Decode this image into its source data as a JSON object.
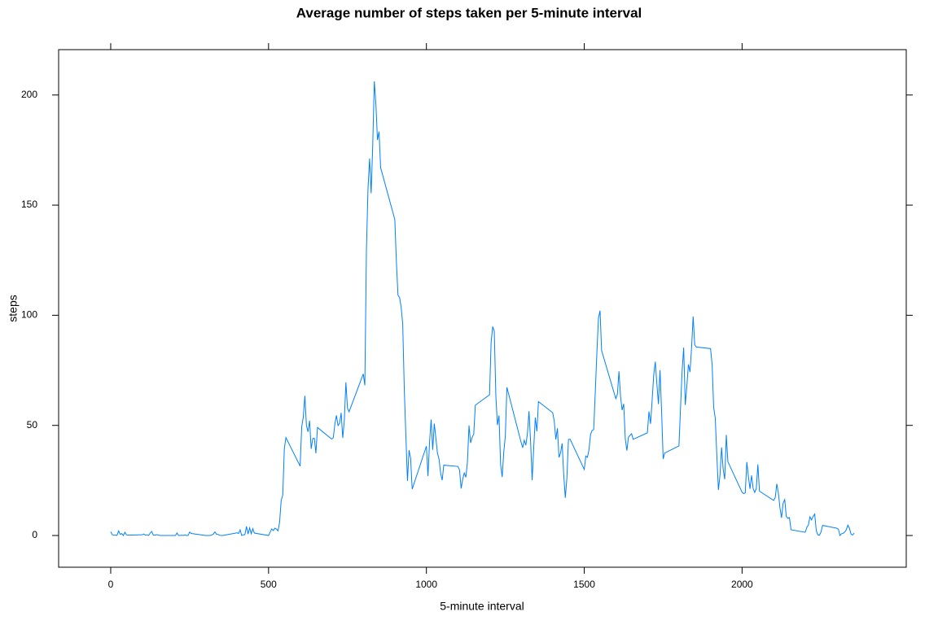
{
  "chart_data": {
    "type": "line",
    "title": "Average number of steps taken per 5-minute interval",
    "xlabel": "5-minute interval",
    "ylabel": "steps",
    "xlim": [
      -165,
      2520
    ],
    "ylim": [
      -14.4,
      220.6
    ],
    "xticks": [
      0,
      500,
      1000,
      1500,
      2000
    ],
    "yticks": [
      0,
      50,
      100,
      150,
      200
    ],
    "x": [
      0,
      5,
      10,
      15,
      20,
      25,
      30,
      35,
      40,
      45,
      50,
      55,
      100,
      105,
      110,
      115,
      120,
      125,
      130,
      135,
      140,
      145,
      150,
      155,
      200,
      205,
      210,
      215,
      220,
      225,
      230,
      235,
      240,
      245,
      250,
      255,
      300,
      305,
      310,
      315,
      320,
      325,
      330,
      335,
      340,
      345,
      350,
      355,
      400,
      405,
      410,
      415,
      420,
      425,
      430,
      435,
      440,
      445,
      450,
      455,
      500,
      505,
      510,
      515,
      520,
      525,
      530,
      535,
      540,
      545,
      550,
      555,
      600,
      605,
      610,
      615,
      620,
      625,
      630,
      635,
      640,
      645,
      650,
      655,
      700,
      705,
      710,
      715,
      720,
      725,
      730,
      735,
      740,
      745,
      750,
      755,
      800,
      805,
      810,
      815,
      820,
      825,
      830,
      835,
      840,
      845,
      850,
      855,
      900,
      905,
      910,
      915,
      920,
      925,
      930,
      935,
      940,
      945,
      950,
      955,
      1000,
      1005,
      1010,
      1015,
      1020,
      1025,
      1030,
      1035,
      1040,
      1045,
      1050,
      1055,
      1100,
      1105,
      1110,
      1115,
      1120,
      1125,
      1130,
      1135,
      1140,
      1145,
      1150,
      1155,
      1200,
      1205,
      1210,
      1215,
      1220,
      1225,
      1230,
      1235,
      1240,
      1245,
      1250,
      1255,
      1300,
      1305,
      1310,
      1315,
      1320,
      1325,
      1330,
      1335,
      1340,
      1345,
      1350,
      1355,
      1400,
      1405,
      1410,
      1415,
      1420,
      1425,
      1430,
      1435,
      1440,
      1445,
      1450,
      1455,
      1500,
      1505,
      1510,
      1515,
      1520,
      1525,
      1530,
      1535,
      1540,
      1545,
      1550,
      1555,
      1600,
      1605,
      1610,
      1615,
      1620,
      1625,
      1630,
      1635,
      1640,
      1645,
      1650,
      1655,
      1700,
      1705,
      1710,
      1715,
      1720,
      1725,
      1730,
      1735,
      1740,
      1745,
      1750,
      1755,
      1800,
      1805,
      1810,
      1815,
      1820,
      1825,
      1830,
      1835,
      1840,
      1845,
      1850,
      1855,
      1900,
      1905,
      1910,
      1915,
      1920,
      1925,
      1930,
      1935,
      1940,
      1945,
      1950,
      1955,
      2000,
      2005,
      2010,
      2015,
      2020,
      2025,
      2030,
      2035,
      2040,
      2045,
      2050,
      2055,
      2100,
      2105,
      2110,
      2115,
      2120,
      2125,
      2130,
      2135,
      2140,
      2145,
      2150,
      2155,
      2200,
      2205,
      2210,
      2215,
      2220,
      2225,
      2230,
      2235,
      2240,
      2245,
      2250,
      2255,
      2300,
      2305,
      2310,
      2315,
      2320,
      2325,
      2330,
      2335,
      2340,
      2345,
      2350,
      2355
    ],
    "series": [
      {
        "color": "#0080ff",
        "values": [
          1.72,
          0.34,
          0.13,
          0.15,
          0.08,
          2.09,
          0.53,
          0.87,
          0,
          1.47,
          0.3,
          0.13,
          0.32,
          0.68,
          0.15,
          0.34,
          0,
          1.11,
          1.83,
          0.17,
          0.17,
          0.38,
          0.26,
          0,
          0,
          0,
          1.13,
          0,
          0,
          0.13,
          0,
          0.23,
          0,
          0,
          1.55,
          0.94,
          0,
          0,
          0,
          0,
          0.21,
          0.62,
          1.62,
          0.58,
          0.49,
          0.08,
          0,
          0,
          1.19,
          0.94,
          2.57,
          0,
          0.34,
          0.36,
          4.11,
          0.66,
          3.49,
          0.83,
          3.11,
          1.11,
          0,
          1.55,
          2.98,
          2.25,
          3.32,
          2.96,
          2.09,
          6.06,
          16.02,
          18.34,
          39.45,
          44.49,
          31.49,
          49.26,
          53.77,
          63.45,
          49.96,
          47.08,
          52.15,
          39.34,
          44.02,
          44.17,
          37.36,
          49.04,
          43.81,
          44.38,
          50.51,
          54.51,
          49.92,
          50.98,
          55.68,
          44.32,
          52.26,
          69.55,
          57.85,
          56.15,
          73.38,
          68.21,
          129.43,
          157.53,
          171.15,
          155.4,
          177.3,
          206.17,
          195.92,
          179.57,
          183.4,
          167.02,
          143.45,
          124.04,
          109.11,
          108.11,
          103.72,
          95.97,
          66.21,
          45.23,
          24.79,
          38.75,
          34.98,
          21.06,
          40.57,
          26.98,
          42.42,
          52.66,
          38.92,
          50.79,
          44.28,
          37.42,
          34.7,
          28.34,
          25.09,
          31.94,
          31.36,
          29.68,
          21.32,
          25.55,
          28.38,
          26.47,
          33.43,
          49.98,
          42.04,
          44.6,
          46.04,
          59.19,
          63.87,
          87.7,
          94.85,
          92.77,
          63.4,
          50.17,
          54.47,
          32.42,
          26.53,
          37.74,
          45.06,
          67.28,
          42.34,
          39.88,
          43.26,
          40.98,
          46.25,
          56.43,
          42.75,
          25.13,
          39.96,
          53.55,
          47.32,
          60.81,
          55.75,
          51.96,
          43.58,
          48.7,
          35.47,
          37.55,
          41.85,
          27.51,
          17.11,
          26.08,
          43.62,
          43.77,
          30.02,
          36.08,
          35.49,
          38.85,
          45.96,
          47.75,
          48.13,
          65.32,
          82.91,
          98.66,
          102.11,
          83.96,
          62.13,
          64.13,
          74.55,
          63.17,
          56.91,
          59.77,
          43.87,
          38.57,
          44.66,
          45.45,
          46.21,
          43.68,
          46.62,
          56.3,
          50.72,
          61.23,
          72.72,
          78.94,
          68.94,
          59.66,
          75.09,
          56.51,
          34.77,
          37.45,
          40.68,
          58.02,
          74.7,
          85.32,
          59.26,
          67.77,
          77.7,
          74.25,
          85.34,
          99.45,
          86.58,
          85.6,
          84.87,
          77.83,
          58.04,
          53.36,
          36.32,
          20.72,
          27.4,
          40.02,
          30.21,
          25.55,
          45.66,
          33.53,
          19.62,
          19.02,
          19.34,
          33.34,
          26.81,
          21.17,
          27.3,
          21.34,
          19.55,
          21.32,
          32.3,
          20.15,
          15.94,
          17.23,
          23.45,
          19.25,
          12.45,
          8.02,
          14.66,
          16.3,
          8.68,
          7.79,
          8.13,
          2.62,
          1.45,
          3.68,
          4.81,
          8.51,
          7.08,
          8.7,
          9.75,
          2.21,
          0.32,
          0.11,
          1.6,
          4.6,
          3.3,
          2.85,
          0,
          0.83,
          0.96,
          1.58,
          2.6,
          4.7,
          3.3,
          0.64,
          0.23,
          1.08
        ]
      }
    ]
  }
}
